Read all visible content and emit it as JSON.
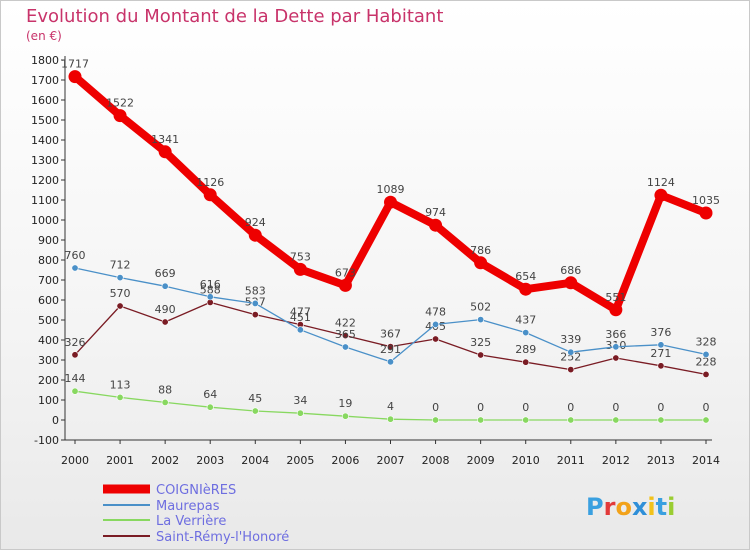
{
  "chart_data": {
    "type": "line",
    "title": "Evolution du Montant de la Dette par Habitant",
    "subtitle": "(en €)",
    "x": [
      "2000",
      "2001",
      "2002",
      "2003",
      "2004",
      "2005",
      "2006",
      "2007",
      "2008",
      "2009",
      "2010",
      "2011",
      "2012",
      "2013",
      "2014"
    ],
    "ylim": [
      -100,
      1800
    ],
    "ytick_step": 100,
    "grid": false,
    "legend_placement": "bottom-left",
    "series": [
      {
        "name": "COIGNIèRES",
        "color": "#ee0000",
        "values": [
          1717,
          1522,
          1341,
          1126,
          924,
          753,
          673,
          1089,
          974,
          786,
          654,
          686,
          551,
          1124,
          1035
        ]
      },
      {
        "name": "Maurepas",
        "color": "#4a90c8",
        "values": [
          760,
          712,
          669,
          616,
          583,
          451,
          365,
          291,
          478,
          502,
          437,
          339,
          366,
          376,
          328
        ]
      },
      {
        "name": "La Verrière",
        "color": "#88d860",
        "values": [
          144,
          113,
          88,
          64,
          45,
          34,
          19,
          4,
          0,
          0,
          0,
          0,
          0,
          0,
          0
        ]
      },
      {
        "name": "Saint-Rémy-l'Honoré",
        "color": "#7a1c24",
        "values": [
          326,
          570,
          490,
          588,
          527,
          477,
          422,
          367,
          405,
          325,
          289,
          252,
          310,
          271,
          228
        ]
      }
    ]
  },
  "logo": {
    "text": "Proxiti"
  }
}
